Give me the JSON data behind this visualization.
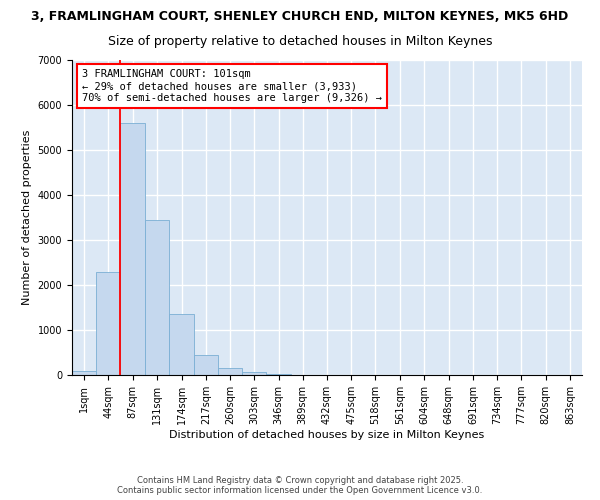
{
  "title": "3, FRAMLINGHAM COURT, SHENLEY CHURCH END, MILTON KEYNES, MK5 6HD",
  "subtitle": "Size of property relative to detached houses in Milton Keynes",
  "xlabel": "Distribution of detached houses by size in Milton Keynes",
  "ylabel": "Number of detached properties",
  "bin_left_edges": [
    1,
    44,
    87,
    131,
    174,
    217,
    260,
    303,
    346,
    389,
    432,
    475,
    518,
    561,
    604,
    648,
    691,
    734,
    777,
    820
  ],
  "bin_width": 43,
  "bar_heights": [
    100,
    2300,
    5600,
    3450,
    1350,
    450,
    155,
    60,
    30,
    10,
    5,
    3,
    2,
    1,
    1,
    0,
    0,
    0,
    0,
    0
  ],
  "bar_color": "#c5d8ee",
  "bar_edgecolor": "#7aafd4",
  "bg_color": "#dce8f5",
  "grid_color": "#ffffff",
  "red_line_x": 87,
  "annotation_text": "3 FRAMLINGHAM COURT: 101sqm\n← 29% of detached houses are smaller (3,933)\n70% of semi-detached houses are larger (9,326) →",
  "ylim": [
    0,
    7000
  ],
  "yticks": [
    0,
    1000,
    2000,
    3000,
    4000,
    5000,
    6000,
    7000
  ],
  "xtick_labels": [
    "1sqm",
    "44sqm",
    "87sqm",
    "131sqm",
    "174sqm",
    "217sqm",
    "260sqm",
    "303sqm",
    "346sqm",
    "389sqm",
    "432sqm",
    "475sqm",
    "518sqm",
    "561sqm",
    "604sqm",
    "648sqm",
    "691sqm",
    "734sqm",
    "777sqm",
    "820sqm",
    "863sqm"
  ],
  "copyright_text": "Contains HM Land Registry data © Crown copyright and database right 2025.\nContains public sector information licensed under the Open Government Licence v3.0.",
  "title_fontsize": 9,
  "subtitle_fontsize": 9,
  "label_fontsize": 8,
  "tick_fontsize": 7,
  "annot_fontsize": 7.5
}
